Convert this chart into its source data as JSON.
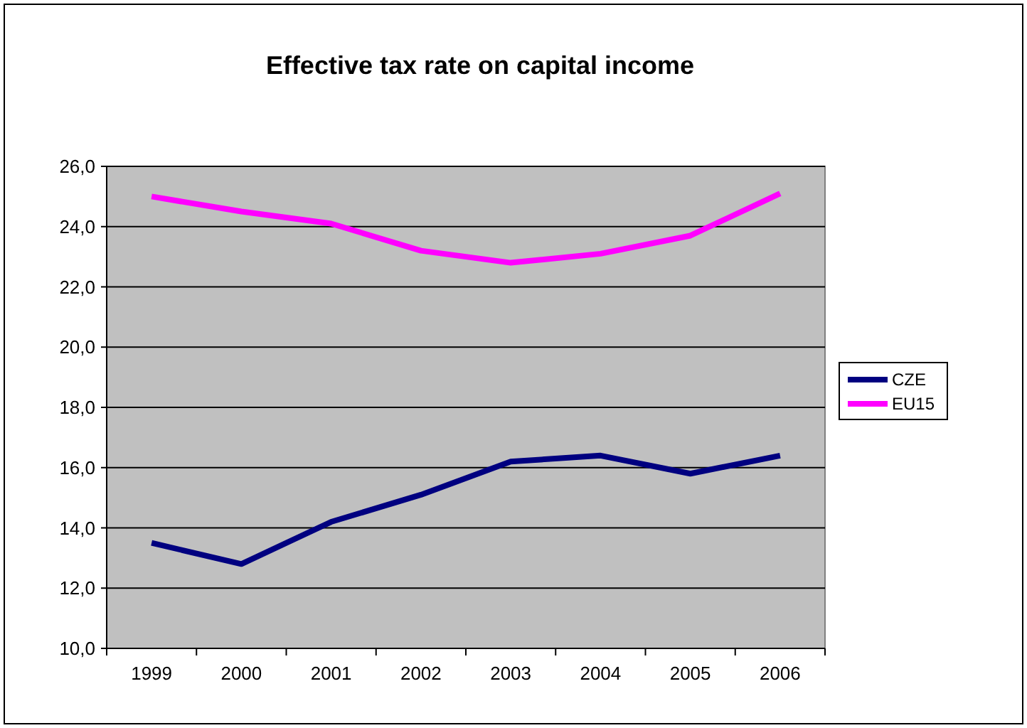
{
  "chart_data": {
    "type": "line",
    "title": "Effective tax rate on capital income",
    "categories": [
      "1999",
      "2000",
      "2001",
      "2002",
      "2003",
      "2004",
      "2005",
      "2006"
    ],
    "series": [
      {
        "name": "CZE",
        "color": "#000080",
        "values": [
          13.5,
          12.8,
          14.2,
          15.1,
          16.2,
          16.4,
          15.8,
          16.4
        ]
      },
      {
        "name": "EU15",
        "color": "#ff00ff",
        "values": [
          25.0,
          24.5,
          24.1,
          23.2,
          22.8,
          23.1,
          23.7,
          25.1
        ]
      }
    ],
    "ylim": [
      10,
      26
    ],
    "yticks": [
      {
        "value": 10,
        "label": "10,0"
      },
      {
        "value": 12,
        "label": "12,0"
      },
      {
        "value": 14,
        "label": "14,0"
      },
      {
        "value": 16,
        "label": "16,0"
      },
      {
        "value": 18,
        "label": "18,0"
      },
      {
        "value": 20,
        "label": "20,0"
      },
      {
        "value": 22,
        "label": "22,0"
      },
      {
        "value": 24,
        "label": "24,0"
      },
      {
        "value": 26,
        "label": "26,0"
      }
    ],
    "grid": "y",
    "legend": "right",
    "marker": "none",
    "line_style": "solid"
  }
}
